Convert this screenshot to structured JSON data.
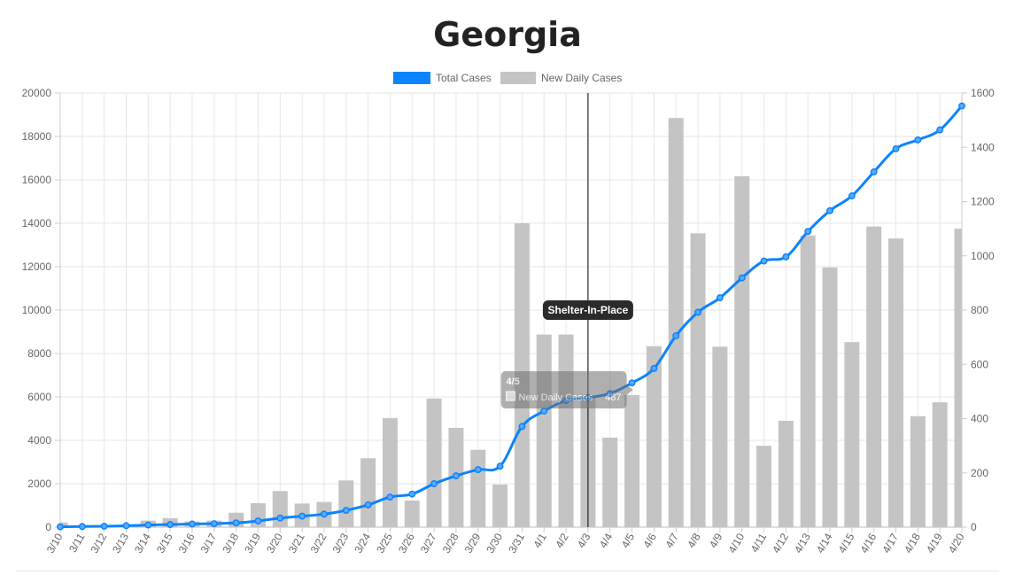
{
  "chart_data": {
    "type": "bar",
    "title": "Georgia",
    "categories": [
      "3/10",
      "3/11",
      "3/12",
      "3/13",
      "3/14",
      "3/15",
      "3/16",
      "3/17",
      "3/18",
      "3/19",
      "3/20",
      "3/21",
      "3/22",
      "3/23",
      "3/24",
      "3/25",
      "3/26",
      "3/27",
      "3/28",
      "3/29",
      "3/30",
      "3/31",
      "4/1",
      "4/2",
      "4/3",
      "4/4",
      "4/5",
      "4/6",
      "4/7",
      "4/8",
      "4/9",
      "4/10",
      "4/11",
      "4/12",
      "4/13",
      "4/14",
      "4/15",
      "4/16",
      "4/17",
      "4/18",
      "4/19",
      "4/20"
    ],
    "series": [
      {
        "name": "Total Cases",
        "type": "line",
        "axis": "left",
        "color": "#0a84ff",
        "values": [
          17,
          31,
          42,
          66,
          99,
          121,
          146,
          162,
          197,
          287,
          420,
          507,
          600,
          772,
          1026,
          1387,
          1525,
          2000,
          2366,
          2651,
          2808,
          4638,
          5348,
          5831,
          5967,
          6160,
          6647,
          7314,
          8818,
          9901,
          10566,
          11483,
          12261,
          12452,
          13621,
          14578,
          15260,
          16368,
          17432,
          17841,
          18301,
          19407
        ]
      },
      {
        "name": "New Daily Cases",
        "type": "bar",
        "axis": "right",
        "color": "#c4c4c4",
        "values": [
          17,
          2,
          2,
          2,
          24,
          33,
          21,
          24,
          53,
          88,
          133,
          87,
          93,
          172,
          254,
          402,
          98,
          474,
          366,
          285,
          157,
          1120,
          710,
          710,
          483,
          330,
          487,
          667,
          1508,
          1083,
          665,
          1293,
          300,
          392,
          1075,
          957,
          682,
          1108,
          1064,
          409,
          460,
          1100
        ]
      }
    ],
    "y_left": {
      "min": 0,
      "max": 20000,
      "step": 2000
    },
    "y_right": {
      "min": 0,
      "max": 1600,
      "step": 200
    },
    "legend_position": "top-center",
    "grid": true,
    "annotation": {
      "label": "Shelter-In-Place",
      "at": "4/3"
    },
    "tooltip": {
      "title": "4/5",
      "item": "New Daily Cases",
      "value": 487
    }
  }
}
